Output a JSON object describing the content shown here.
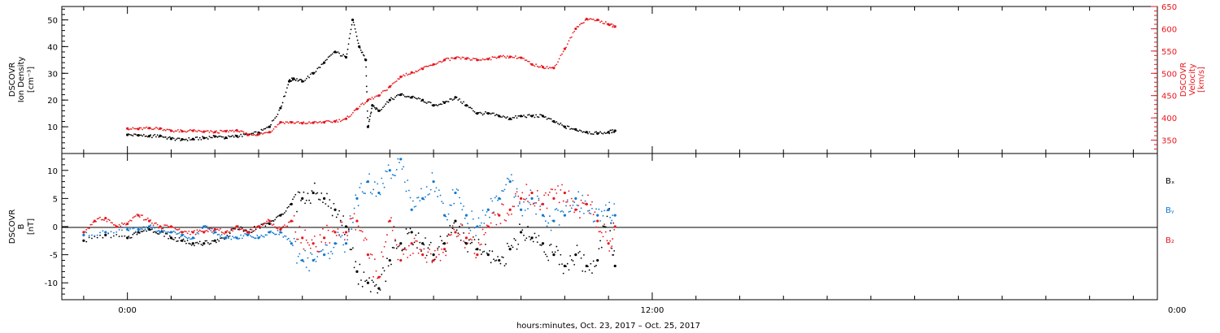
{
  "chart_data": [
    {
      "type": "scatter",
      "panel": "top",
      "ylabel_left": [
        "DSCOVR",
        "Ion Density",
        "[cm⁻³]"
      ],
      "ylabel_right": [
        "DSCOVR",
        "Velocity",
        "[km/s]"
      ],
      "ylim_left": [
        0,
        55
      ],
      "ylim_right": [
        320,
        650
      ],
      "left_ticks": [
        "10",
        "20",
        "30",
        "40",
        "50"
      ],
      "right_ticks": [
        "350",
        "400",
        "450",
        "500",
        "550",
        "600",
        "650"
      ],
      "grid": false,
      "series": [
        {
          "name": "Ion Density",
          "axis": "left",
          "color": "#000000",
          "x": [
            0,
            0.5,
            1,
            1.5,
            2,
            2.5,
            3,
            3.5,
            4,
            4.5,
            5,
            5.5,
            6,
            6.5,
            7,
            7.4,
            7.6,
            8,
            8.5,
            9,
            9.5,
            10,
            10.3,
            10.6,
            10.9,
            11,
            11.2,
            11.5,
            12,
            12.5,
            13,
            13.5,
            14,
            14.5,
            15,
            15.5,
            16,
            16.5,
            17,
            17.5,
            18,
            18.5,
            19,
            19.5,
            20,
            20.5,
            21,
            21.5,
            22,
            22.3
          ],
          "y": [
            7,
            6.8,
            6.5,
            6.6,
            5.5,
            5.3,
            5.4,
            5.8,
            6.4,
            5.9,
            6.5,
            7,
            7.8,
            10,
            17,
            27,
            28,
            27,
            30,
            34,
            38,
            36,
            50,
            40,
            35,
            10,
            18,
            16,
            20,
            22,
            21,
            20,
            18,
            19,
            21,
            18,
            15,
            15,
            14,
            13,
            14,
            14,
            14,
            12,
            10,
            9,
            8,
            7.5,
            8,
            8.5
          ]
        },
        {
          "name": "Velocity",
          "axis": "right",
          "color": "#e8161c",
          "x": [
            0,
            0.5,
            1,
            1.5,
            2,
            2.5,
            3,
            3.5,
            4,
            4.5,
            5,
            5.5,
            6,
            6.5,
            7,
            7.5,
            8,
            8.5,
            9,
            9.5,
            10,
            10.5,
            11,
            11.5,
            12,
            12.5,
            13,
            13.5,
            14,
            14.5,
            15,
            15.5,
            16,
            16.5,
            17,
            17.5,
            18,
            18.5,
            19,
            19.5,
            20,
            20.5,
            21,
            21.5,
            22,
            22.3
          ],
          "y": [
            376,
            375,
            377,
            376,
            371,
            370,
            371,
            369,
            368,
            370,
            372,
            362,
            363,
            368,
            390,
            390,
            388,
            389,
            390,
            392,
            398,
            420,
            440,
            450,
            470,
            492,
            502,
            510,
            520,
            530,
            534,
            533,
            530,
            532,
            537,
            537,
            535,
            520,
            514,
            512,
            555,
            600,
            622,
            620,
            610,
            605
          ]
        }
      ]
    },
    {
      "type": "scatter",
      "panel": "bottom",
      "ylabel": [
        "DSCOVR",
        "B",
        "[nT]"
      ],
      "ylim": [
        -13,
        13
      ],
      "y_ticks": [
        "10",
        "5",
        "0",
        "-5",
        "-10"
      ],
      "xlabel": "hours:minutes, Oct. 23, 2017 – Oct. 25, 2017",
      "x_ticks": [
        "0:00",
        "12:00",
        "0:00"
      ],
      "grid": false,
      "legend_position": "right",
      "legend": [
        "Bₓ",
        "Bᵧ",
        "B₂"
      ],
      "series": [
        {
          "name": "Bₓ",
          "color": "#000000",
          "x": [
            -2,
            -1,
            0,
            0.5,
            1,
            1.5,
            2,
            2.5,
            3,
            3.5,
            4,
            4.5,
            5,
            5.5,
            6,
            6.5,
            7,
            7.5,
            8,
            8.5,
            9,
            9.5,
            10,
            10.5,
            11,
            11.5,
            12,
            12.5,
            13,
            13.5,
            14,
            14.5,
            15,
            15.5,
            16,
            16.5,
            17,
            17.5,
            18,
            18.5,
            19,
            19.5,
            20,
            20.5,
            21,
            21.5,
            22,
            22.3
          ],
          "y": [
            -2.5,
            -1.5,
            -2,
            -1,
            -0.5,
            -1,
            -2,
            -2.5,
            -3,
            -3,
            -2.5,
            -2,
            0,
            -1,
            0,
            0.5,
            2,
            4,
            5,
            6,
            5,
            3,
            0,
            -8,
            -10,
            -11,
            -6,
            -3,
            -1,
            -3,
            -5,
            -3,
            1,
            -3,
            -4,
            -5,
            -6,
            -4,
            -1,
            -2,
            -3,
            -5,
            -7,
            -5,
            -7,
            -6,
            3,
            -7
          ]
        },
        {
          "name": "Bᵧ",
          "color": "#0f78d0",
          "x": [
            -2,
            -1,
            0,
            0.5,
            1,
            1.5,
            2,
            2.5,
            3,
            3.5,
            4,
            4.5,
            5,
            5.5,
            6,
            6.5,
            7,
            7.5,
            8,
            8.5,
            9,
            9.5,
            10,
            10.5,
            11,
            11.5,
            12,
            12.5,
            13,
            13.5,
            14,
            14.5,
            15,
            15.5,
            16,
            16.5,
            17,
            17.5,
            18,
            18.5,
            19,
            19.5,
            20,
            20.5,
            21,
            21.5,
            22,
            22.3
          ],
          "y": [
            -1.5,
            -1,
            -0.5,
            -0.5,
            0,
            -1,
            -1,
            -1.5,
            -2,
            0,
            -1,
            -2,
            -2,
            -1.5,
            -2,
            -1,
            -1,
            -3,
            -6,
            -6,
            -5,
            -3,
            -3,
            5,
            8,
            6,
            10,
            12,
            3,
            5,
            8,
            2,
            6,
            2,
            0,
            3,
            5,
            8,
            3,
            5,
            2,
            1,
            2,
            5,
            4,
            2,
            3,
            2
          ]
        },
        {
          "name": "B₂",
          "color": "#e8161c",
          "x": [
            -2,
            -1.5,
            -1,
            -0.5,
            0,
            0.5,
            1,
            1.5,
            2,
            2.5,
            3,
            3.5,
            4,
            4.5,
            5,
            5.5,
            6,
            6.5,
            7,
            7.5,
            8,
            8.5,
            9,
            9.5,
            10,
            10.5,
            11,
            11.5,
            12,
            12.5,
            13,
            13.5,
            14,
            14.5,
            15,
            15.5,
            16,
            16.5,
            17,
            17.5,
            18,
            18.5,
            19,
            19.5,
            20,
            20.5,
            21,
            21.5,
            22,
            22.3
          ],
          "y": [
            -1,
            1,
            1.5,
            0,
            0.5,
            2,
            1,
            0,
            0,
            -1,
            -1,
            -1,
            -0.5,
            -1,
            0,
            -1,
            0,
            1,
            -0.5,
            1,
            -2,
            -3,
            -2,
            -1,
            -1,
            1,
            -5,
            -9,
            1,
            -6,
            -3,
            -5,
            -6,
            -4,
            -1,
            -2,
            -5,
            0,
            2,
            3,
            5,
            6,
            4,
            5,
            6,
            3,
            4,
            1,
            -3,
            0
          ]
        }
      ]
    }
  ]
}
